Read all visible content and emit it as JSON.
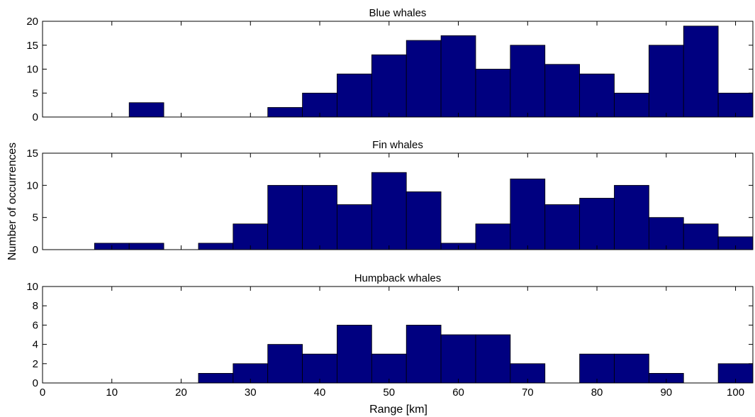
{
  "colors": {
    "bar": "#000080",
    "bar_edge": "#000000",
    "axes": "#000000",
    "background": "#ffffff"
  },
  "shared": {
    "xlabel": "Range [km]",
    "ylabel": "Number of occurrences",
    "xlim": [
      0,
      102.5
    ],
    "xticks": [
      0,
      10,
      20,
      30,
      40,
      50,
      60,
      70,
      80,
      90,
      100
    ],
    "bin_width": 5
  },
  "chart_data": [
    {
      "type": "bar",
      "title": "Blue whales",
      "x": [
        15,
        35,
        40,
        45,
        50,
        55,
        60,
        65,
        70,
        75,
        80,
        85,
        90,
        95,
        100
      ],
      "values": [
        3,
        2,
        5,
        9,
        13,
        16,
        17,
        10,
        15,
        11,
        9,
        5,
        15,
        19,
        5
      ],
      "ylim": [
        0,
        20
      ],
      "yticks": [
        0,
        5,
        10,
        15,
        20
      ],
      "xlabel": "",
      "ylabel": "Number of occurrences",
      "grid": false
    },
    {
      "type": "bar",
      "title": "Fin whales",
      "x": [
        10,
        15,
        25,
        30,
        35,
        40,
        45,
        50,
        55,
        60,
        65,
        70,
        75,
        80,
        85,
        90,
        95,
        100
      ],
      "values": [
        1,
        1,
        1,
        4,
        10,
        10,
        7,
        12,
        9,
        1,
        4,
        11,
        7,
        8,
        10,
        5,
        4,
        2
      ],
      "ylim": [
        0,
        15
      ],
      "yticks": [
        0,
        5,
        10,
        15
      ],
      "xlabel": "",
      "ylabel": "Number of occurrences",
      "grid": false
    },
    {
      "type": "bar",
      "title": "Humpback whales",
      "x": [
        25,
        30,
        35,
        40,
        45,
        50,
        55,
        60,
        65,
        70,
        80,
        85,
        90,
        100
      ],
      "values": [
        1,
        2,
        4,
        3,
        6,
        3,
        6,
        5,
        5,
        2,
        3,
        3,
        1,
        2
      ],
      "ylim": [
        0,
        10
      ],
      "yticks": [
        0,
        2,
        4,
        6,
        8,
        10
      ],
      "xlabel": "Range [km]",
      "ylabel": "Number of occurrences",
      "grid": false
    }
  ]
}
